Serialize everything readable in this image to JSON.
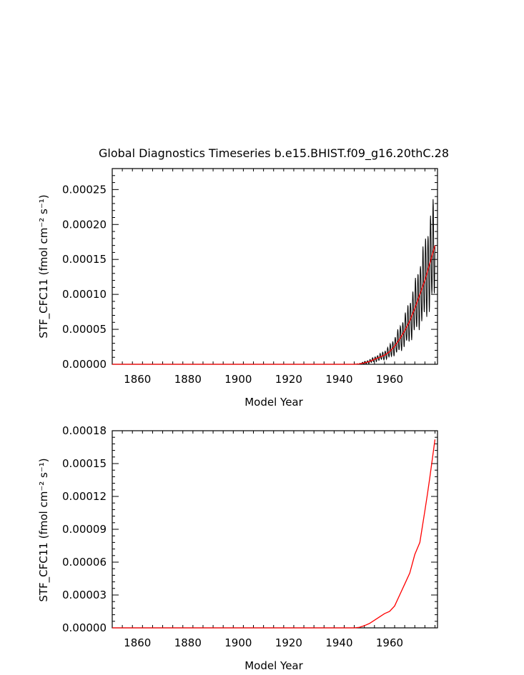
{
  "chart_data": [
    {
      "type": "line",
      "title": "Global Diagnostics Timeseries b.e15.BHIST.f09_g16.20thC.28",
      "xlabel": "Model Year",
      "ylabel": "STF_CFC11 (fmol cm⁻² s⁻¹)",
      "xlim": [
        1850,
        1979
      ],
      "ylim": [
        0,
        0.00028
      ],
      "x_ticks": [
        "1860",
        "1880",
        "1900",
        "1920",
        "1940",
        "1960"
      ],
      "y_ticks": [
        "0.00000",
        "0.00005",
        "0.00010",
        "0.00015",
        "0.00020",
        "0.00025"
      ],
      "series": [
        {
          "color": "#000000",
          "kind": "monthly",
          "x": [
            1850,
            1946,
            1948,
            1950,
            1952,
            1954,
            1956,
            1958,
            1960,
            1962,
            1964,
            1966,
            1968,
            1970,
            1972,
            1974,
            1976,
            1978
          ],
          "mean": [
            0,
            0,
            5e-07,
            2e-06,
            4e-06,
            7e-06,
            1e-05,
            1.3e-05,
            1.8e-05,
            2.6e-05,
            3.6e-05,
            4.8e-05,
            6.2e-05,
            8e-05,
            0.0001,
            0.00012,
            0.000145,
            0.00017
          ],
          "amp": [
            0,
            0,
            8e-07,
            2e-06,
            3e-06,
            4e-06,
            5e-06,
            7e-06,
            1e-05,
            1.4e-05,
            2e-05,
            2.5e-05,
            3.2e-05,
            4e-05,
            5e-05,
            6.2e-05,
            7.2e-05,
            8e-05
          ]
        },
        {
          "color": "#ff0000",
          "kind": "annual",
          "x": [
            1850,
            1946,
            1948,
            1950,
            1952,
            1954,
            1956,
            1958,
            1960,
            1962,
            1964,
            1966,
            1968,
            1970,
            1972,
            1974,
            1976,
            1978
          ],
          "values": [
            0,
            0,
            5e-07,
            2e-06,
            4e-06,
            7e-06,
            1e-05,
            1.3e-05,
            1.8e-05,
            2.6e-05,
            3.6e-05,
            4.8e-05,
            6.2e-05,
            8e-05,
            0.0001,
            0.00012,
            0.000145,
            0.00017
          ]
        }
      ]
    },
    {
      "type": "line",
      "title": "",
      "xlabel": "Model Year",
      "ylabel": "STF_CFC11 (fmol cm⁻² s⁻¹)",
      "xlim": [
        1850,
        1979
      ],
      "ylim": [
        0,
        0.00018
      ],
      "x_ticks": [
        "1860",
        "1880",
        "1900",
        "1920",
        "1940",
        "1960"
      ],
      "y_ticks": [
        "0.00000",
        "0.00003",
        "0.00006",
        "0.00009",
        "0.00012",
        "0.00015",
        "0.00018"
      ],
      "series": [
        {
          "color": "#ff0000",
          "kind": "annual",
          "x": [
            1850,
            1946,
            1948,
            1950,
            1952,
            1954,
            1956,
            1958,
            1960,
            1962,
            1964,
            1966,
            1968,
            1970,
            1972,
            1974,
            1975,
            1976,
            1978
          ],
          "values": [
            0,
            0,
            5e-07,
            2e-06,
            4e-06,
            7e-06,
            1e-05,
            1.3e-05,
            1.5e-05,
            2e-05,
            3e-05,
            4e-05,
            5e-05,
            6.7e-05,
            7.8e-05,
            0.000107,
            0.000122,
            0.000138,
            0.000172
          ]
        }
      ]
    }
  ]
}
